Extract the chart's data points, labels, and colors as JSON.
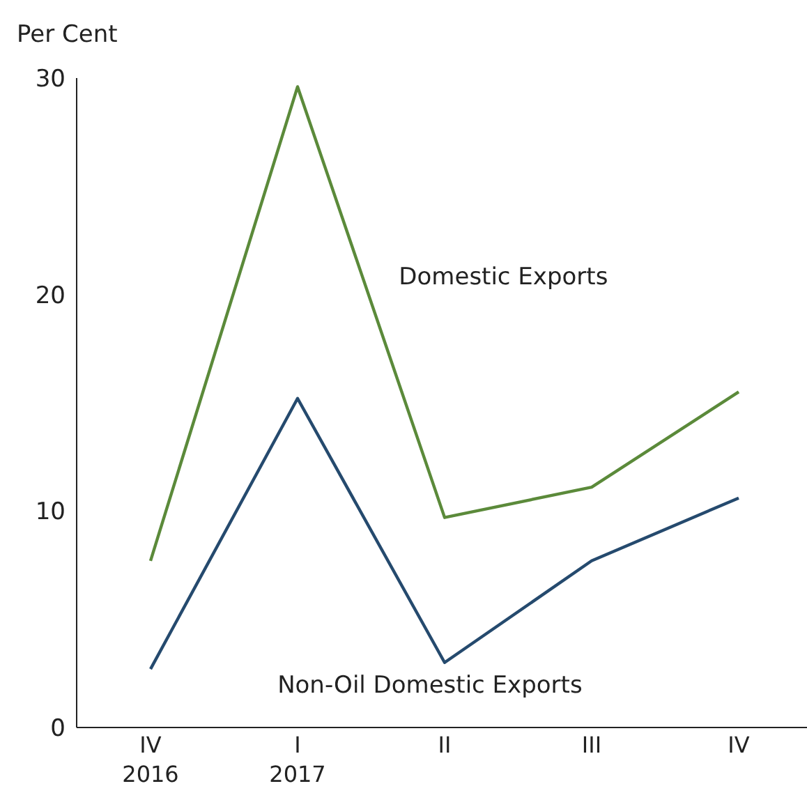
{
  "chart_data": {
    "type": "line",
    "ylabel": "Per Cent",
    "categories": [
      "IV\n2016",
      "I\n2017",
      "II",
      "III",
      "IV"
    ],
    "series": [
      {
        "name": "Domestic Exports",
        "color": "#5b8a3a",
        "values": [
          7.7,
          29.6,
          9.7,
          11.1,
          15.5
        ]
      },
      {
        "name": "Non-Oil Domestic Exports",
        "color": "#254a6e",
        "values": [
          2.7,
          15.2,
          3.0,
          7.7,
          10.6
        ]
      }
    ],
    "ylim": [
      0,
      30
    ],
    "yticks": [
      0,
      10,
      20,
      30
    ],
    "grid": false,
    "legend": false,
    "marker": "none",
    "line_style": "solid"
  }
}
